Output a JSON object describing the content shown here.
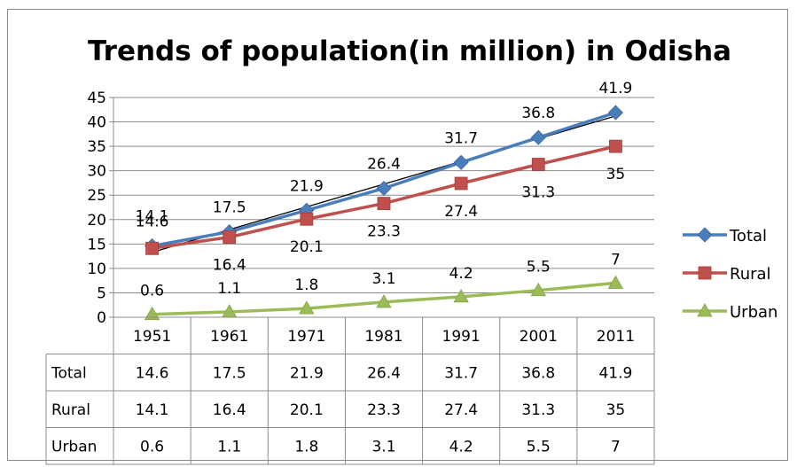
{
  "chart_data": {
    "type": "line",
    "title": "Trends of population(in million) in Odisha",
    "categories": [
      "1951",
      "1961",
      "1971",
      "1981",
      "1991",
      "2001",
      "2011"
    ],
    "series": [
      {
        "name": "Total",
        "values": [
          14.6,
          17.5,
          21.9,
          26.4,
          31.7,
          36.8,
          41.9
        ],
        "color": "#4a7ebb",
        "marker": "diamond"
      },
      {
        "name": "Rural",
        "values": [
          14.1,
          16.4,
          20.1,
          23.3,
          27.4,
          31.3,
          35
        ],
        "color": "#c0504d",
        "marker": "square"
      },
      {
        "name": "Urban",
        "values": [
          0.6,
          1.1,
          1.8,
          3.1,
          4.2,
          5.5,
          7
        ],
        "color": "#9bbb59",
        "marker": "triangle"
      }
    ],
    "trendline": {
      "series": "Total",
      "type": "linear",
      "color": "#000000"
    },
    "ylim": [
      0,
      45
    ],
    "yticks": [
      0,
      5,
      10,
      15,
      20,
      25,
      30,
      35,
      40,
      45
    ],
    "grid": true,
    "legend_position": "right",
    "data_table": true
  }
}
